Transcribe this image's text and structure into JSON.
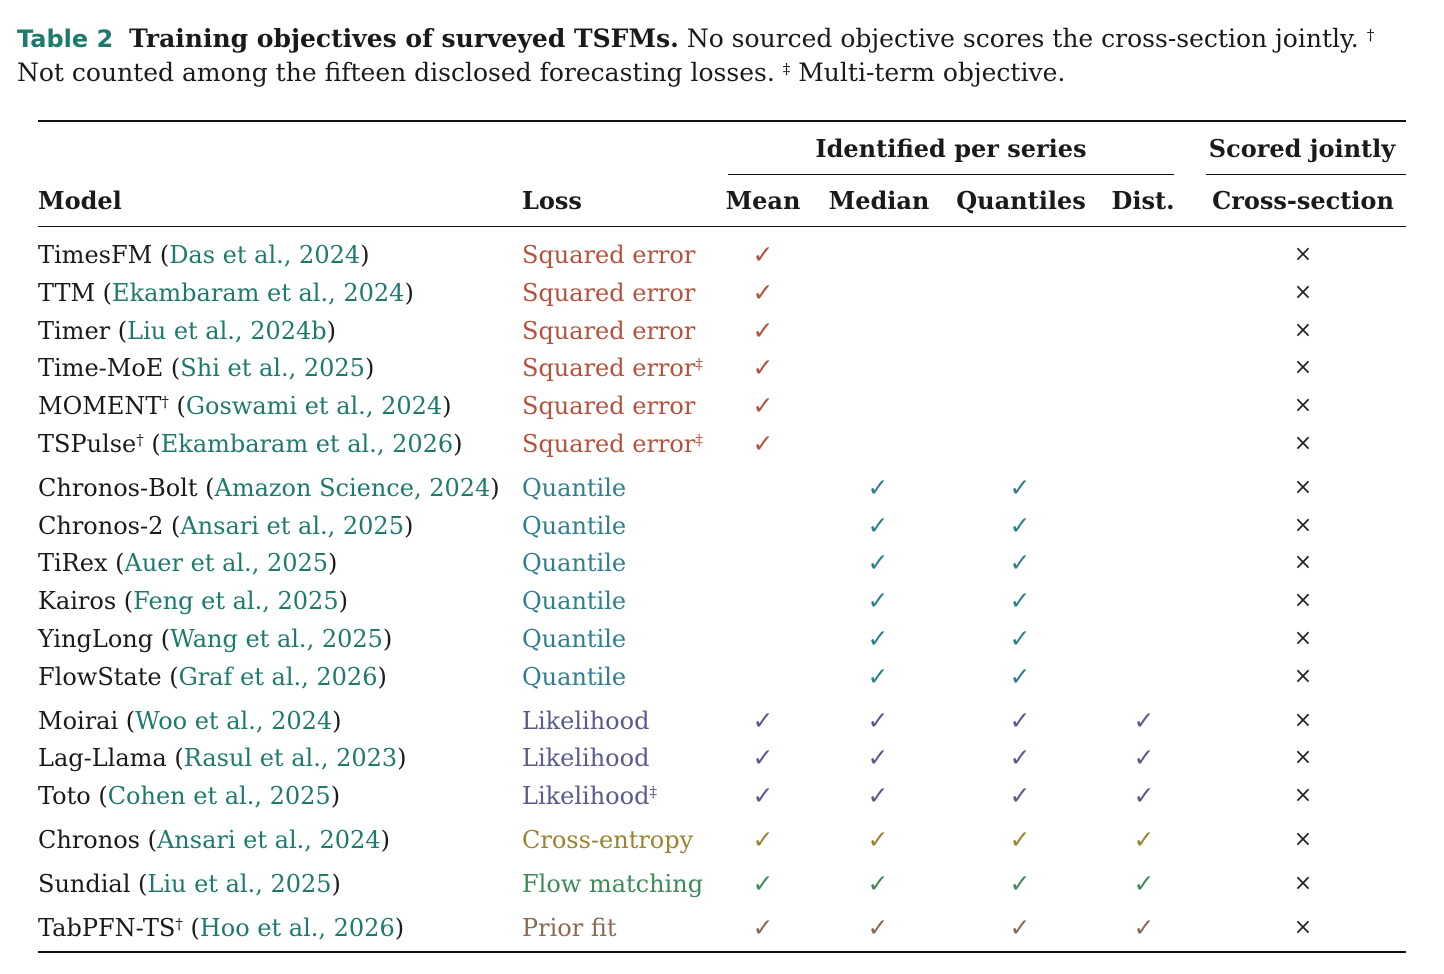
{
  "caption": {
    "label": "Table 2",
    "title": "Training objectives of surveyed TSFMs.",
    "text1": "No sourced objective scores the cross-section jointly.",
    "dagger": "†",
    "text2": "Not counted among the fifteen disclosed forecasting losses.",
    "ddagger": "‡",
    "text3": "Multi-term objective."
  },
  "headers": {
    "group_identified": "Identified per series",
    "group_scored": "Scored jointly",
    "model": "Model",
    "loss": "Loss",
    "mean": "Mean",
    "median": "Median",
    "quantiles": "Quantiles",
    "dist": "Dist.",
    "cross": "Cross-section"
  },
  "colors": {
    "squared": "#b5523f",
    "quantile": "#2f7f8f",
    "likelihood": "#5b5a8f",
    "crossentropy": "#9a8434",
    "flow": "#3f8a5a",
    "prior": "#8a6a56",
    "citation": "#1f7a6e"
  },
  "symbols": {
    "check": "✓",
    "cross": "×"
  },
  "rows": [
    {
      "model": "TimesFM",
      "model_sup": "",
      "author": "Das et al.",
      "year": "2024",
      "loss": "Squared error",
      "loss_sup": "",
      "kind": "squared",
      "marks": [
        1,
        0,
        0,
        0
      ]
    },
    {
      "model": "TTM",
      "model_sup": "",
      "author": "Ekambaram et al.",
      "year": "2024",
      "loss": "Squared error",
      "loss_sup": "",
      "kind": "squared",
      "marks": [
        1,
        0,
        0,
        0
      ]
    },
    {
      "model": "Timer",
      "model_sup": "",
      "author": "Liu et al.",
      "year": "2024b",
      "loss": "Squared error",
      "loss_sup": "",
      "kind": "squared",
      "marks": [
        1,
        0,
        0,
        0
      ]
    },
    {
      "model": "Time-MoE",
      "model_sup": "",
      "author": "Shi et al.",
      "year": "2025",
      "loss": "Squared error",
      "loss_sup": "‡",
      "kind": "squared",
      "marks": [
        1,
        0,
        0,
        0
      ]
    },
    {
      "model": "MOMENT",
      "model_sup": "†",
      "author": "Goswami et al.",
      "year": "2024",
      "loss": "Squared error",
      "loss_sup": "",
      "kind": "squared",
      "marks": [
        1,
        0,
        0,
        0
      ]
    },
    {
      "model": "TSPulse",
      "model_sup": "†",
      "author": "Ekambaram et al.",
      "year": "2026",
      "loss": "Squared error",
      "loss_sup": "‡",
      "kind": "squared",
      "marks": [
        1,
        0,
        0,
        0
      ]
    },
    {
      "model": "Chronos-Bolt",
      "model_sup": "",
      "author": "Amazon Science",
      "year": "2024",
      "loss": "Quantile",
      "loss_sup": "",
      "kind": "quantile",
      "marks": [
        0,
        1,
        1,
        0
      ]
    },
    {
      "model": "Chronos-2",
      "model_sup": "",
      "author": "Ansari et al.",
      "year": "2025",
      "loss": "Quantile",
      "loss_sup": "",
      "kind": "quantile",
      "marks": [
        0,
        1,
        1,
        0
      ]
    },
    {
      "model": "TiRex",
      "model_sup": "",
      "author": "Auer et al.",
      "year": "2025",
      "loss": "Quantile",
      "loss_sup": "",
      "kind": "quantile",
      "marks": [
        0,
        1,
        1,
        0
      ]
    },
    {
      "model": "Kairos",
      "model_sup": "",
      "author": "Feng et al.",
      "year": "2025",
      "loss": "Quantile",
      "loss_sup": "",
      "kind": "quantile",
      "marks": [
        0,
        1,
        1,
        0
      ]
    },
    {
      "model": "YingLong",
      "model_sup": "",
      "author": "Wang et al.",
      "year": "2025",
      "loss": "Quantile",
      "loss_sup": "",
      "kind": "quantile",
      "marks": [
        0,
        1,
        1,
        0
      ]
    },
    {
      "model": "FlowState",
      "model_sup": "",
      "author": "Graf et al.",
      "year": "2026",
      "loss": "Quantile",
      "loss_sup": "",
      "kind": "quantile",
      "marks": [
        0,
        1,
        1,
        0
      ]
    },
    {
      "model": "Moirai",
      "model_sup": "",
      "author": "Woo et al.",
      "year": "2024",
      "loss": "Likelihood",
      "loss_sup": "",
      "kind": "likelihood",
      "marks": [
        1,
        1,
        1,
        1
      ]
    },
    {
      "model": "Lag-Llama",
      "model_sup": "",
      "author": "Rasul et al.",
      "year": "2023",
      "loss": "Likelihood",
      "loss_sup": "",
      "kind": "likelihood",
      "marks": [
        1,
        1,
        1,
        1
      ]
    },
    {
      "model": "Toto",
      "model_sup": "",
      "author": "Cohen et al.",
      "year": "2025",
      "loss": "Likelihood",
      "loss_sup": "‡",
      "kind": "likelihood",
      "marks": [
        1,
        1,
        1,
        1
      ]
    },
    {
      "model": "Chronos",
      "model_sup": "",
      "author": "Ansari et al.",
      "year": "2024",
      "loss": "Cross-entropy",
      "loss_sup": "",
      "kind": "crossentropy",
      "marks": [
        1,
        1,
        1,
        1
      ]
    },
    {
      "model": "Sundial",
      "model_sup": "",
      "author": "Liu et al.",
      "year": "2025",
      "loss": "Flow matching",
      "loss_sup": "",
      "kind": "flow",
      "marks": [
        1,
        1,
        1,
        1
      ]
    },
    {
      "model": "TabPFN-TS",
      "model_sup": "†",
      "author": "Hoo et al.",
      "year": "2026",
      "loss": "Prior fit",
      "loss_sup": "",
      "kind": "prior",
      "marks": [
        1,
        1,
        1,
        1
      ]
    }
  ]
}
